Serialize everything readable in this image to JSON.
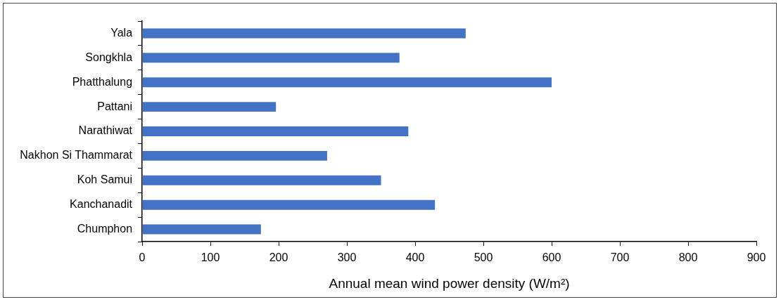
{
  "chart_data": {
    "type": "bar",
    "orientation": "horizontal",
    "xlabel": "Annual mean wind power density (W/m²)",
    "categories": [
      "Yala",
      "Songkhla",
      "Phatthalung",
      "Pattani",
      "Narathiwat",
      "Nakhon Si Thammarat",
      "Koh Samui",
      "Kanchanadit",
      "Chumphon"
    ],
    "values": [
      474,
      377,
      600,
      196,
      390,
      271,
      350,
      429,
      174
    ],
    "color": "#4472c4",
    "xlim": [
      0,
      900
    ],
    "xticks": [
      0,
      100,
      200,
      300,
      400,
      500,
      600,
      700,
      800,
      900
    ],
    "grid": false,
    "legend": false
  }
}
